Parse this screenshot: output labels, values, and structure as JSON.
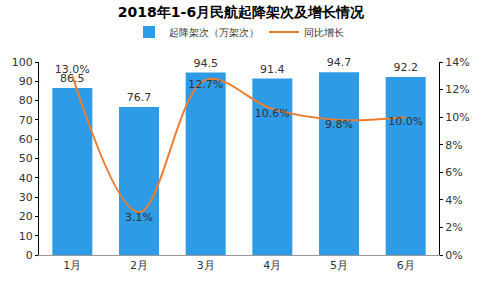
{
  "chart_data": {
    "type": "bar",
    "title": "2018年1-6月民航起降架次及增长情况",
    "categories": [
      "1月",
      "2月",
      "3月",
      "4月",
      "5月",
      "6月"
    ],
    "series": [
      {
        "name": "起降架次（万架次）",
        "type": "bar",
        "color": "#2e9be6",
        "values": [
          86.5,
          76.7,
          94.5,
          91.4,
          94.7,
          92.2
        ]
      },
      {
        "name": "同比增长",
        "type": "line",
        "color": "#ed7d31",
        "axis": "y2",
        "line_style": "smooth",
        "values": [
          13.0,
          3.1,
          12.7,
          10.6,
          9.8,
          10.0
        ],
        "value_labels": [
          "13.0%",
          "3.1%",
          "12.7%",
          "10.6%",
          "9.8%",
          "10.0%"
        ]
      }
    ],
    "ylim": [
      0,
      100
    ],
    "yticks": [
      0,
      10,
      20,
      30,
      40,
      50,
      60,
      70,
      80,
      90,
      100
    ],
    "y2lim": [
      0,
      14
    ],
    "y2ticks": [
      {
        "value": 0,
        "label": "0%"
      },
      {
        "value": 2,
        "label": "2%"
      },
      {
        "value": 4,
        "label": "4%"
      },
      {
        "value": 6,
        "label": "6%"
      },
      {
        "value": 8,
        "label": "8%"
      },
      {
        "value": 10,
        "label": "10%"
      },
      {
        "value": 12,
        "label": "12%"
      },
      {
        "value": 14,
        "label": "14%"
      }
    ],
    "data_labels": true,
    "legend": "top",
    "grid": false
  }
}
